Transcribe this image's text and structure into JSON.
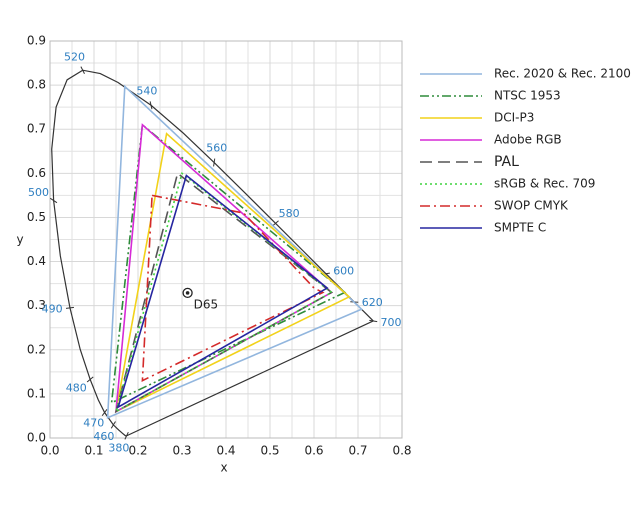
{
  "chart_data": {
    "type": "chromaticity",
    "xlabel": "x",
    "ylabel": "y",
    "xlim": [
      0,
      0.8
    ],
    "ylim": [
      0,
      0.9
    ],
    "xticks": [
      {
        "value": 0,
        "label": "0.0"
      },
      0.1,
      0.2,
      0.3,
      0.4,
      0.5,
      0.6,
      0.7,
      0.8
    ],
    "yticks": [
      {
        "value": 0,
        "label": "0.0"
      },
      0.1,
      0.2,
      0.3,
      0.4,
      0.5,
      0.6,
      0.7,
      0.8,
      0.9
    ],
    "xminor": [
      0.05,
      0.15,
      0.25,
      0.35,
      0.45,
      0.55,
      0.65,
      0.75
    ],
    "yminor": [
      0.05,
      0.15,
      0.25,
      0.35,
      0.45,
      0.55,
      0.65,
      0.75,
      0.85
    ],
    "grid": true,
    "legend": "right",
    "locus": {
      "x": [
        0.1741,
        0.1714,
        0.1644,
        0.1566,
        0.144,
        0.1241,
        0.1096,
        0.0913,
        0.0687,
        0.0454,
        0.0235,
        0.0082,
        0.0039,
        0.0139,
        0.0389,
        0.0743,
        0.1142,
        0.1547,
        0.2296,
        0.3016,
        0.3731,
        0.4441,
        0.5125,
        0.5752,
        0.627,
        0.6658,
        0.6915,
        0.719,
        0.7347
      ],
      "y": [
        0.005,
        0.0051,
        0.0109,
        0.0177,
        0.0297,
        0.0578,
        0.0868,
        0.1327,
        0.2007,
        0.295,
        0.4127,
        0.5384,
        0.6548,
        0.7502,
        0.812,
        0.8338,
        0.8262,
        0.8059,
        0.7543,
        0.6923,
        0.6245,
        0.5547,
        0.4866,
        0.4242,
        0.3725,
        0.334,
        0.3083,
        0.2809,
        0.2653
      ],
      "labels": [
        380,
        null,
        null,
        null,
        460,
        470,
        null,
        480,
        null,
        490,
        null,
        500,
        null,
        null,
        null,
        520,
        null,
        null,
        540,
        null,
        560,
        null,
        580,
        null,
        600,
        null,
        620,
        null,
        700
      ]
    },
    "white_point": {
      "label": "D65",
      "x": 0.3127,
      "y": 0.329
    },
    "series": [
      {
        "name": "Rec. 2020 & Rec. 2100",
        "color": "#92b6de",
        "style": "solid",
        "x": [
          0.708,
          0.17,
          0.131
        ],
        "y": [
          0.292,
          0.797,
          0.046
        ]
      },
      {
        "name": "NTSC 1953",
        "color": "#2e8b3a",
        "style": "dash-dot-dot",
        "x": [
          0.67,
          0.21,
          0.14
        ],
        "y": [
          0.33,
          0.71,
          0.08
        ]
      },
      {
        "name": "DCI-P3",
        "color": "#f2d21a",
        "style": "solid",
        "x": [
          0.68,
          0.265,
          0.15
        ],
        "y": [
          0.32,
          0.69,
          0.06
        ]
      },
      {
        "name": "Adobe RGB",
        "color": "#d62ad6",
        "style": "solid",
        "x": [
          0.64,
          0.21,
          0.15
        ],
        "y": [
          0.33,
          0.71,
          0.06
        ]
      },
      {
        "name": "PAL",
        "color": "#555555",
        "style": "long-dash",
        "x": [
          0.64,
          0.29,
          0.15
        ],
        "y": [
          0.33,
          0.6,
          0.06
        ]
      },
      {
        "name": "sRGB & Rec. 709",
        "color": "#3ed23e",
        "style": "dotted",
        "x": [
          0.64,
          0.3,
          0.15
        ],
        "y": [
          0.33,
          0.6,
          0.06
        ]
      },
      {
        "name": "SWOP CMYK",
        "color": "#d42a2a",
        "style": "dash-dot",
        "x": [
          0.232,
          0.44,
          0.6,
          0.62,
          0.21
        ],
        "y": [
          0.55,
          0.51,
          0.34,
          0.33,
          0.13
        ]
      },
      {
        "name": "SMPTE C",
        "color": "#2626a0",
        "style": "solid",
        "x": [
          0.63,
          0.31,
          0.155
        ],
        "y": [
          0.34,
          0.595,
          0.07
        ]
      }
    ]
  }
}
